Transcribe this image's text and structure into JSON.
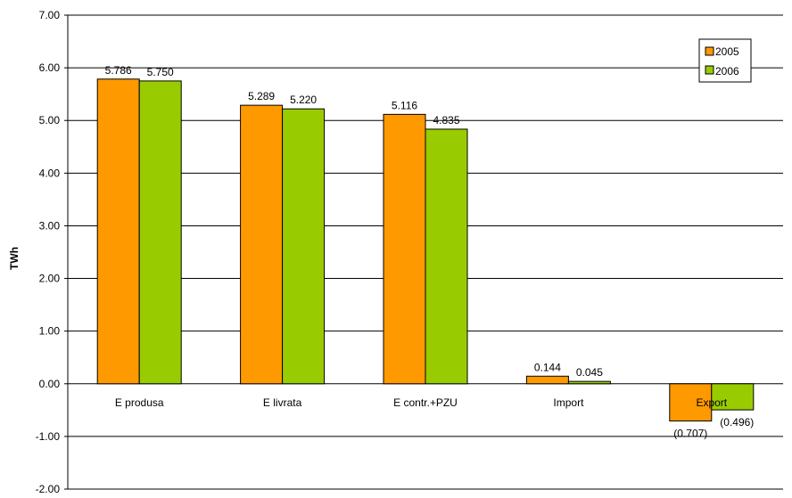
{
  "chart_data": {
    "type": "bar",
    "categories": [
      "E produsa",
      "E livrata",
      "E contr.+PZU",
      "Import",
      "Export"
    ],
    "series": [
      {
        "name": "2005",
        "color": "#ff9900",
        "values": [
          5.786,
          5.289,
          5.116,
          0.144,
          -0.707
        ],
        "labels": [
          "5.786",
          "5.289",
          "5.116",
          "0.144",
          "(0.707)"
        ]
      },
      {
        "name": "2006",
        "color": "#99cc00",
        "values": [
          5.75,
          5.22,
          4.835,
          0.045,
          -0.496
        ],
        "labels": [
          "5.750",
          "5.220",
          "4.835",
          "0.045",
          "(0.496)"
        ]
      }
    ],
    "yticks": [
      "7.00",
      "6.00",
      "5.00",
      "4.00",
      "3.00",
      "2.00",
      "1.00",
      "0.00",
      "-1.00",
      "-2.00"
    ],
    "ylim": [
      -2,
      7
    ],
    "ylabel": "TWh",
    "xlabel": "",
    "title": "",
    "grid": true,
    "legend_position": "top-right"
  }
}
